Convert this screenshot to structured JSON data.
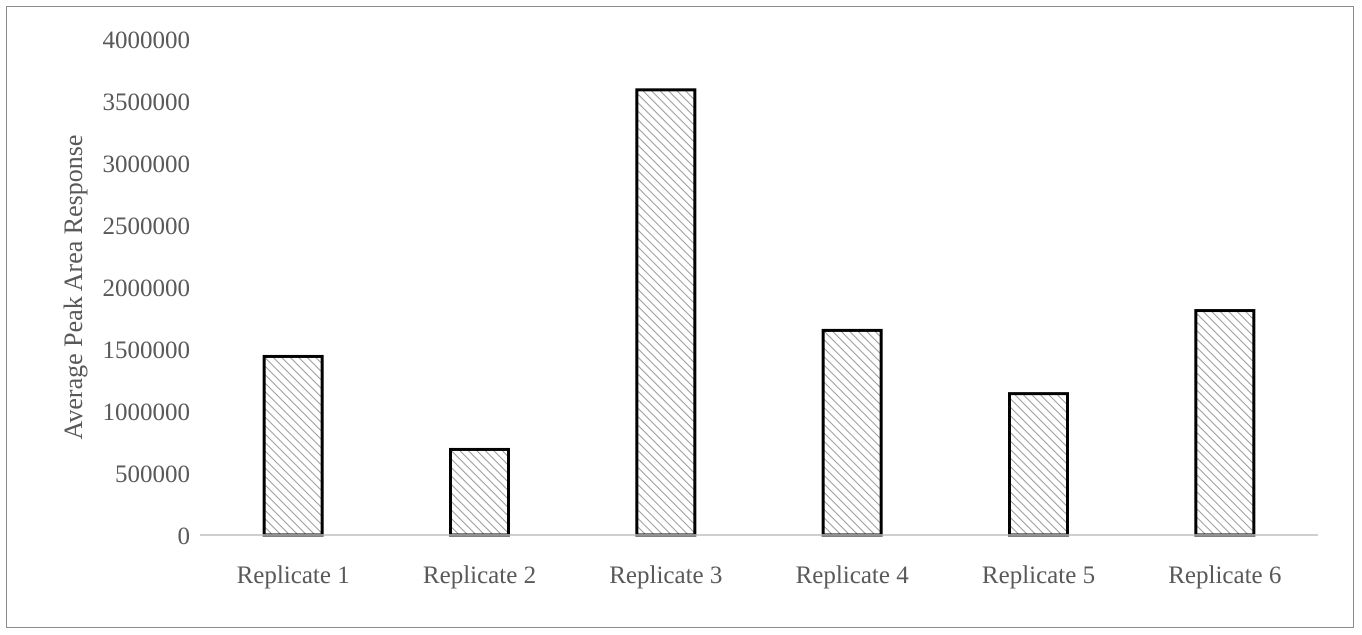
{
  "chart_data": {
    "type": "bar",
    "title": "",
    "xlabel": "",
    "ylabel": "Average Peak Area Response",
    "categories": [
      "Replicate 1",
      "Replicate 2",
      "Replicate 3",
      "Replicate 4",
      "Replicate 5",
      "Replicate 6"
    ],
    "values": [
      1440000,
      690000,
      3590000,
      1650000,
      1140000,
      1810000
    ],
    "ylim": [
      0,
      4000000
    ],
    "yticks": [
      "0",
      "500000",
      "1000000",
      "1500000",
      "2000000",
      "2500000",
      "3000000",
      "3500000",
      "4000000"
    ],
    "grid": false,
    "legend": "none",
    "bar_fill": "diagonal hatch",
    "colors": {
      "bar_outline": "#000000",
      "hatch": "#9a9a9a",
      "axis": "#bfbfbf",
      "text": "#595959"
    }
  }
}
